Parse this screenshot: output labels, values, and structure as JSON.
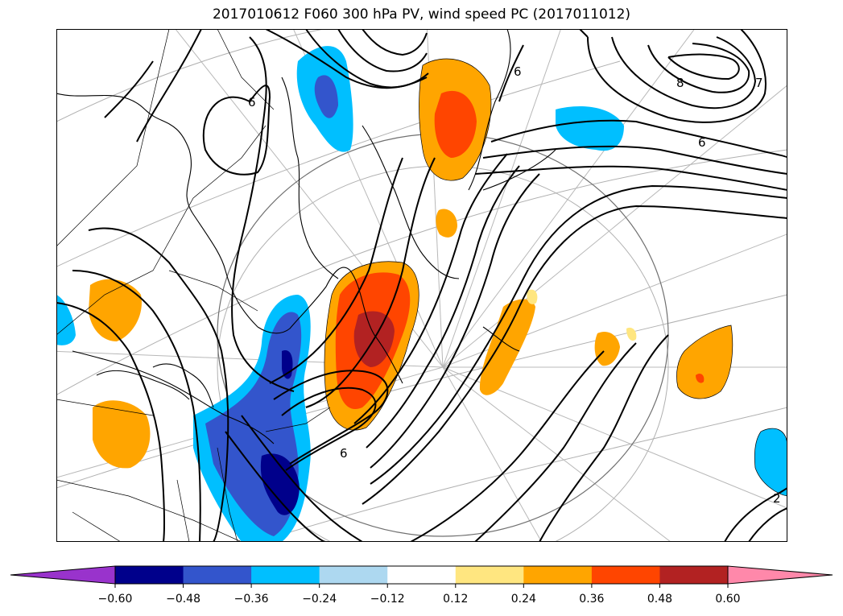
{
  "title": "2017010612 F060 300 hPa PV, wind speed PC (2017011012)",
  "contour_labels": {
    "a": "6",
    "b": "6",
    "c": "6",
    "d": "6",
    "e": "8",
    "f": "7",
    "g": "2"
  },
  "colorbar": {
    "extend": "both",
    "colors": [
      "#9933cc",
      "#00008b",
      "#3355cc",
      "#00bfff",
      "#add8f0",
      "#ffffff",
      "#ffe680",
      "#ffa500",
      "#ff4500",
      "#b22222",
      "#ff88aa"
    ],
    "bounds": [
      -0.6,
      -0.48,
      -0.36,
      -0.24,
      -0.12,
      0.12,
      0.24,
      0.36,
      0.48,
      0.6
    ],
    "tick_labels": [
      "−0.60",
      "−0.48",
      "−0.36",
      "−0.24",
      "−0.12",
      "0.12",
      "0.24",
      "0.36",
      "0.48",
      "0.60"
    ]
  }
}
